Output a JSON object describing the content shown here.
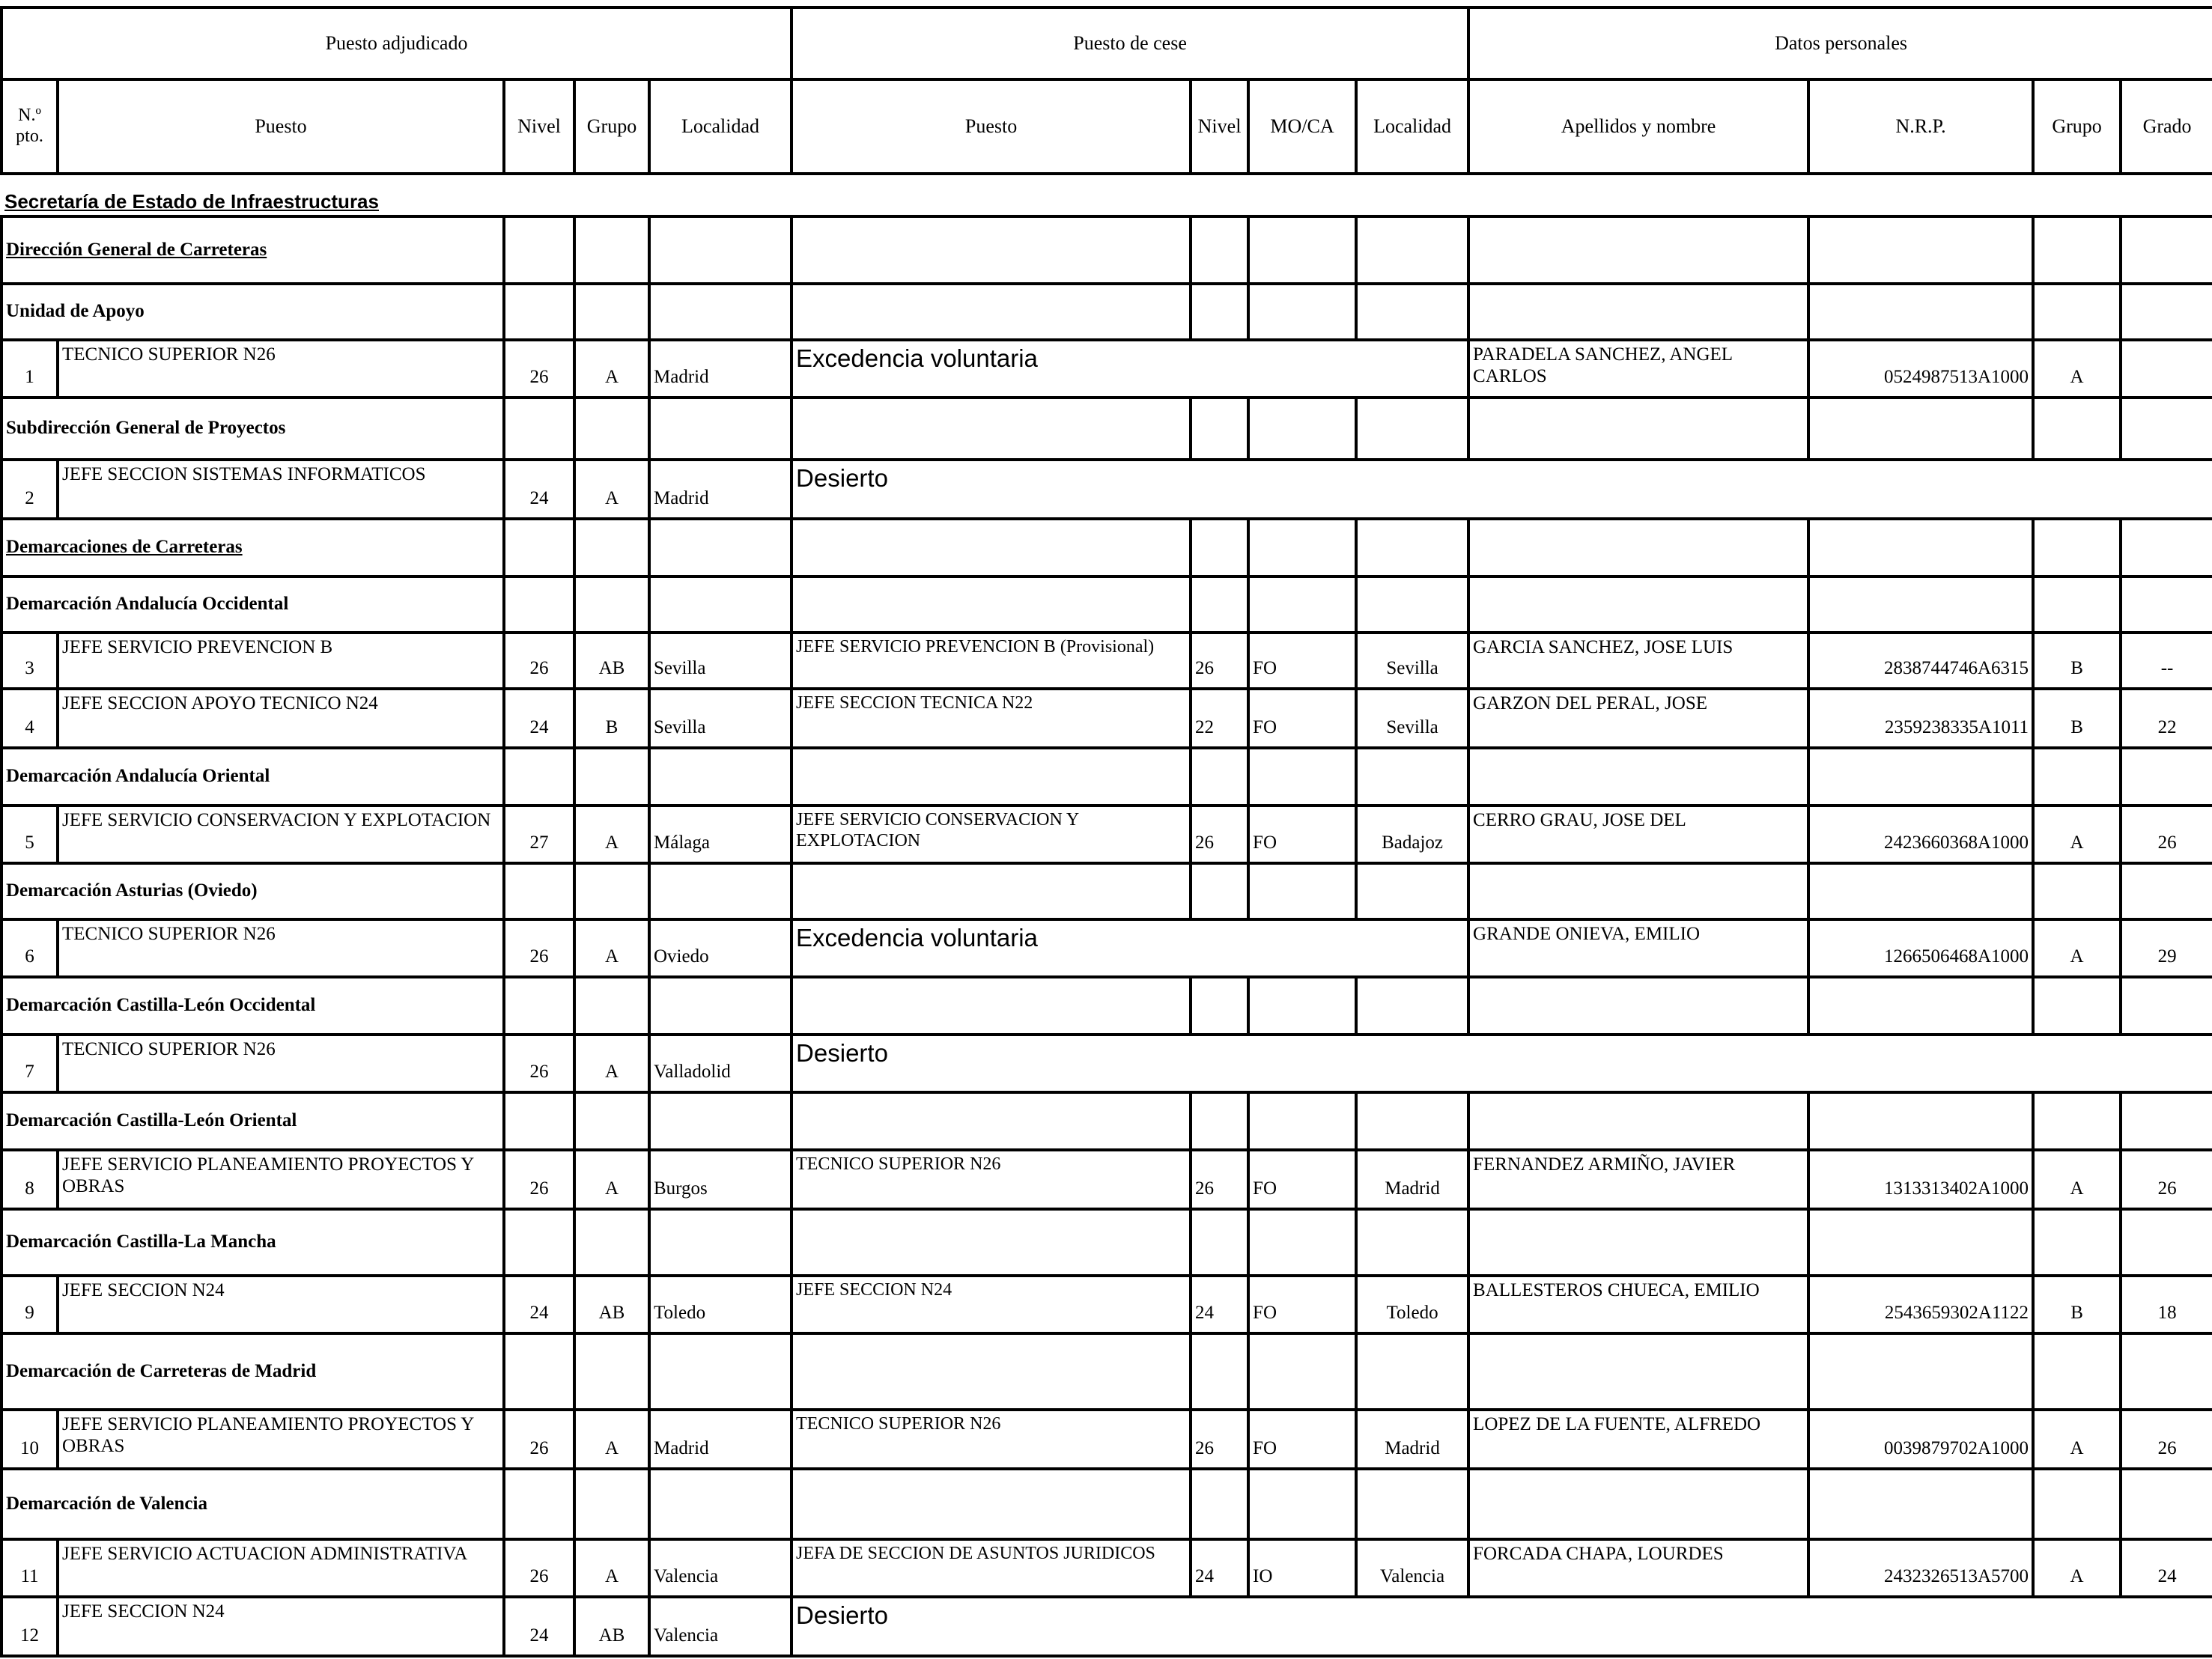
{
  "header": {
    "groups": [
      "Puesto adjudicado",
      "Puesto de cese",
      "Datos personales"
    ],
    "columns": [
      "N.º pto.",
      "Puesto",
      "Nivel",
      "Grupo",
      "Localidad",
      "Puesto",
      "Nivel",
      "MO/CA",
      "Localidad",
      "Apellidos y nombre",
      "N.R.P.",
      "Grupo",
      "Grado"
    ]
  },
  "main_section": "Secretaría de Estado de Infraestructuras",
  "items": [
    {
      "type": "section",
      "label": "Dirección General de Carreteras",
      "underline": true
    },
    {
      "type": "section",
      "label": "Unidad de Apoyo"
    },
    {
      "type": "row",
      "n": "1",
      "puesto": "TECNICO SUPERIOR N26",
      "nivel": "26",
      "grupo": "A",
      "localidad": "Madrid",
      "status": "Excedencia voluntaria",
      "nombre": "PARADELA SANCHEZ, ANGEL CARLOS",
      "nrp": "0524987513A1000",
      "grupo_p": "A",
      "grado": ""
    },
    {
      "type": "section",
      "label": "Subdirección General de Proyectos"
    },
    {
      "type": "row",
      "n": "2",
      "puesto": "JEFE SECCION SISTEMAS INFORMATICOS",
      "nivel": "24",
      "grupo": "A",
      "localidad": "Madrid",
      "desierto": "Desierto"
    },
    {
      "type": "section",
      "label": "Demarcaciones de Carreteras",
      "underline": true
    },
    {
      "type": "section",
      "label": "Demarcación Andalucía Occidental"
    },
    {
      "type": "row",
      "n": "3",
      "puesto": "JEFE SERVICIO PREVENCION B",
      "nivel": "26",
      "grupo": "AB",
      "localidad": "Sevilla",
      "cese_puesto": "JEFE SERVICIO PREVENCION B (Provisional)",
      "cese_nivel": "26",
      "moca": "FO",
      "cese_localidad": "Sevilla",
      "nombre": "GARCIA SANCHEZ, JOSE LUIS",
      "nrp": "2838744746A6315",
      "grupo_p": "B",
      "grado": "--"
    },
    {
      "type": "row",
      "n": "4",
      "puesto": "JEFE SECCION APOYO TECNICO N24",
      "nivel": "24",
      "grupo": "B",
      "localidad": "Sevilla",
      "cese_puesto": "JEFE SECCION TECNICA N22",
      "cese_nivel": "22",
      "moca": "FO",
      "cese_localidad": "Sevilla",
      "nombre": "GARZON DEL PERAL, JOSE",
      "nrp": "2359238335A1011",
      "grupo_p": "B",
      "grado": "22"
    },
    {
      "type": "section",
      "label": "Demarcación Andalucía Oriental"
    },
    {
      "type": "row",
      "n": "5",
      "puesto": "JEFE SERVICIO CONSERVACION Y EXPLOTACION",
      "nivel": "27",
      "grupo": "A",
      "localidad": "Málaga",
      "cese_puesto": "JEFE SERVICIO CONSERVACION Y EXPLOTACION",
      "cese_nivel": "26",
      "moca": "FO",
      "cese_localidad": "Badajoz",
      "nombre": "CERRO GRAU, JOSE DEL",
      "nrp": "2423660368A1000",
      "grupo_p": "A",
      "grado": "26"
    },
    {
      "type": "section",
      "label": "Demarcación Asturias (Oviedo)"
    },
    {
      "type": "row",
      "n": "6",
      "puesto": "TECNICO SUPERIOR N26",
      "nivel": "26",
      "grupo": "A",
      "localidad": "Oviedo",
      "status": "Excedencia voluntaria",
      "nombre": "GRANDE ONIEVA, EMILIO",
      "nrp": "1266506468A1000",
      "grupo_p": "A",
      "grado": "29"
    },
    {
      "type": "section",
      "label": "Demarcación Castilla-León Occidental"
    },
    {
      "type": "row",
      "n": "7",
      "puesto": "TECNICO SUPERIOR N26",
      "nivel": "26",
      "grupo": "A",
      "localidad": "Valladolid",
      "desierto": "Desierto"
    },
    {
      "type": "section",
      "label": "Demarcación Castilla-León Oriental"
    },
    {
      "type": "row",
      "n": "8",
      "puesto": "JEFE SERVICIO PLANEAMIENTO PROYECTOS Y OBRAS",
      "nivel": "26",
      "grupo": "A",
      "localidad": "Burgos",
      "cese_puesto": "TECNICO SUPERIOR N26",
      "cese_nivel": "26",
      "moca": "FO",
      "cese_localidad": "Madrid",
      "nombre": "FERNANDEZ ARMIÑO, JAVIER",
      "nrp": "1313313402A1000",
      "grupo_p": "A",
      "grado": "26"
    },
    {
      "type": "section",
      "label": "Demarcación Castilla-La Mancha"
    },
    {
      "type": "row",
      "n": "9",
      "puesto": "JEFE SECCION N24",
      "nivel": "24",
      "grupo": "AB",
      "localidad": "Toledo",
      "cese_puesto": "JEFE SECCION N24",
      "cese_nivel": "24",
      "moca": "FO",
      "cese_localidad": "Toledo",
      "nombre": "BALLESTEROS CHUECA, EMILIO",
      "nrp": "2543659302A1122",
      "grupo_p": "B",
      "grado": "18"
    },
    {
      "type": "section",
      "label": "Demarcación de Carreteras de Madrid"
    },
    {
      "type": "row",
      "n": "10",
      "puesto": "JEFE SERVICIO PLANEAMIENTO PROYECTOS Y OBRAS",
      "nivel": "26",
      "grupo": "A",
      "localidad": "Madrid",
      "cese_puesto": "TECNICO SUPERIOR N26",
      "cese_nivel": "26",
      "moca": "FO",
      "cese_localidad": "Madrid",
      "nombre": "LOPEZ DE LA FUENTE, ALFREDO",
      "nrp": "0039879702A1000",
      "grupo_p": "A",
      "grado": "26"
    },
    {
      "type": "section",
      "label": "Demarcación de Valencia"
    },
    {
      "type": "row",
      "n": "11",
      "puesto": "JEFE SERVICIO ACTUACION ADMINISTRATIVA",
      "nivel": "26",
      "grupo": "A",
      "localidad": "Valencia",
      "cese_puesto": "JEFA DE SECCION DE ASUNTOS JURIDICOS",
      "cese_nivel": "24",
      "moca": "IO",
      "cese_localidad": "Valencia",
      "nombre": "FORCADA CHAPA, LOURDES",
      "nrp": "2432326513A5700",
      "grupo_p": "A",
      "grado": "24"
    },
    {
      "type": "row",
      "n": "12",
      "puesto": "JEFE SECCION N24",
      "nivel": "24",
      "grupo": "AB",
      "localidad": "Valencia",
      "desierto": "Desierto"
    }
  ]
}
